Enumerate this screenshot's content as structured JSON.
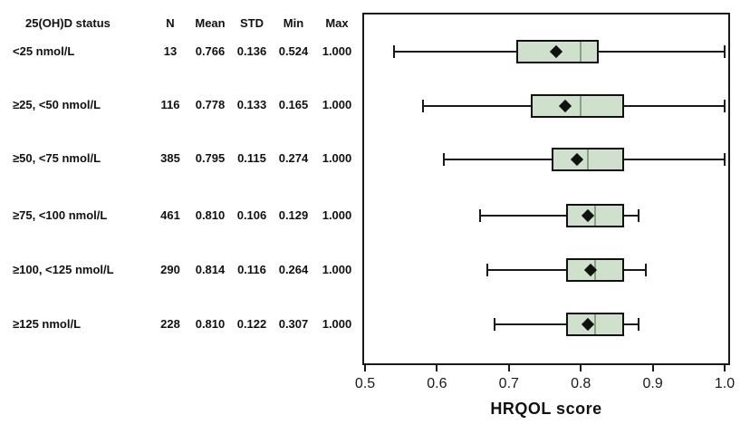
{
  "colors": {
    "box_fill": "#cfe0cc",
    "box_border": "#111111",
    "median_line": "#86a383",
    "mean_marker": "#111111",
    "axis_line": "#1a1a1a"
  },
  "chart_data": {
    "type": "boxplot",
    "orientation": "horizontal",
    "title": "",
    "xlabel": "HRQOL score",
    "ylabel": "25(OH)D status",
    "xlim": [
      0.5,
      1.0
    ],
    "xticks": [
      "0.5",
      "0.6",
      "0.7",
      "0.8",
      "0.9",
      "1.0"
    ],
    "grid": false,
    "legend": false,
    "table_headers": [
      "25(OH)D status",
      "N",
      "Mean",
      "STD",
      "Min",
      "Max"
    ],
    "groups": [
      {
        "label": "<25 nmol/L",
        "n": 13,
        "mean": 0.766,
        "std": 0.136,
        "min": 0.524,
        "max": 1.0,
        "box": {
          "whisker_low": 0.54,
          "q1": 0.71,
          "median": 0.8,
          "q3": 0.825,
          "whisker_high": 1.0
        }
      },
      {
        "label": "≥25, <50 nmol/L",
        "n": 116,
        "mean": 0.778,
        "std": 0.133,
        "min": 0.165,
        "max": 1.0,
        "box": {
          "whisker_low": 0.58,
          "q1": 0.73,
          "median": 0.8,
          "q3": 0.86,
          "whisker_high": 1.0
        }
      },
      {
        "label": "≥50, <75 nmol/L",
        "n": 385,
        "mean": 0.795,
        "std": 0.115,
        "min": 0.274,
        "max": 1.0,
        "box": {
          "whisker_low": 0.61,
          "q1": 0.76,
          "median": 0.81,
          "q3": 0.86,
          "whisker_high": 1.0
        }
      },
      {
        "label": "≥75, <100 nmol/L",
        "n": 461,
        "mean": 0.81,
        "std": 0.106,
        "min": 0.129,
        "max": 1.0,
        "box": {
          "whisker_low": 0.66,
          "q1": 0.78,
          "median": 0.82,
          "q3": 0.86,
          "whisker_high": 0.88
        }
      },
      {
        "label": "≥100, <125 nmol/L",
        "n": 290,
        "mean": 0.814,
        "std": 0.116,
        "min": 0.264,
        "max": 1.0,
        "box": {
          "whisker_low": 0.67,
          "q1": 0.78,
          "median": 0.82,
          "q3": 0.86,
          "whisker_high": 0.89
        }
      },
      {
        "label": "≥125 nmol/L",
        "n": 228,
        "mean": 0.81,
        "std": 0.122,
        "min": 0.307,
        "max": 1.0,
        "box": {
          "whisker_low": 0.68,
          "q1": 0.78,
          "median": 0.82,
          "q3": 0.86,
          "whisker_high": 0.88
        }
      }
    ]
  }
}
